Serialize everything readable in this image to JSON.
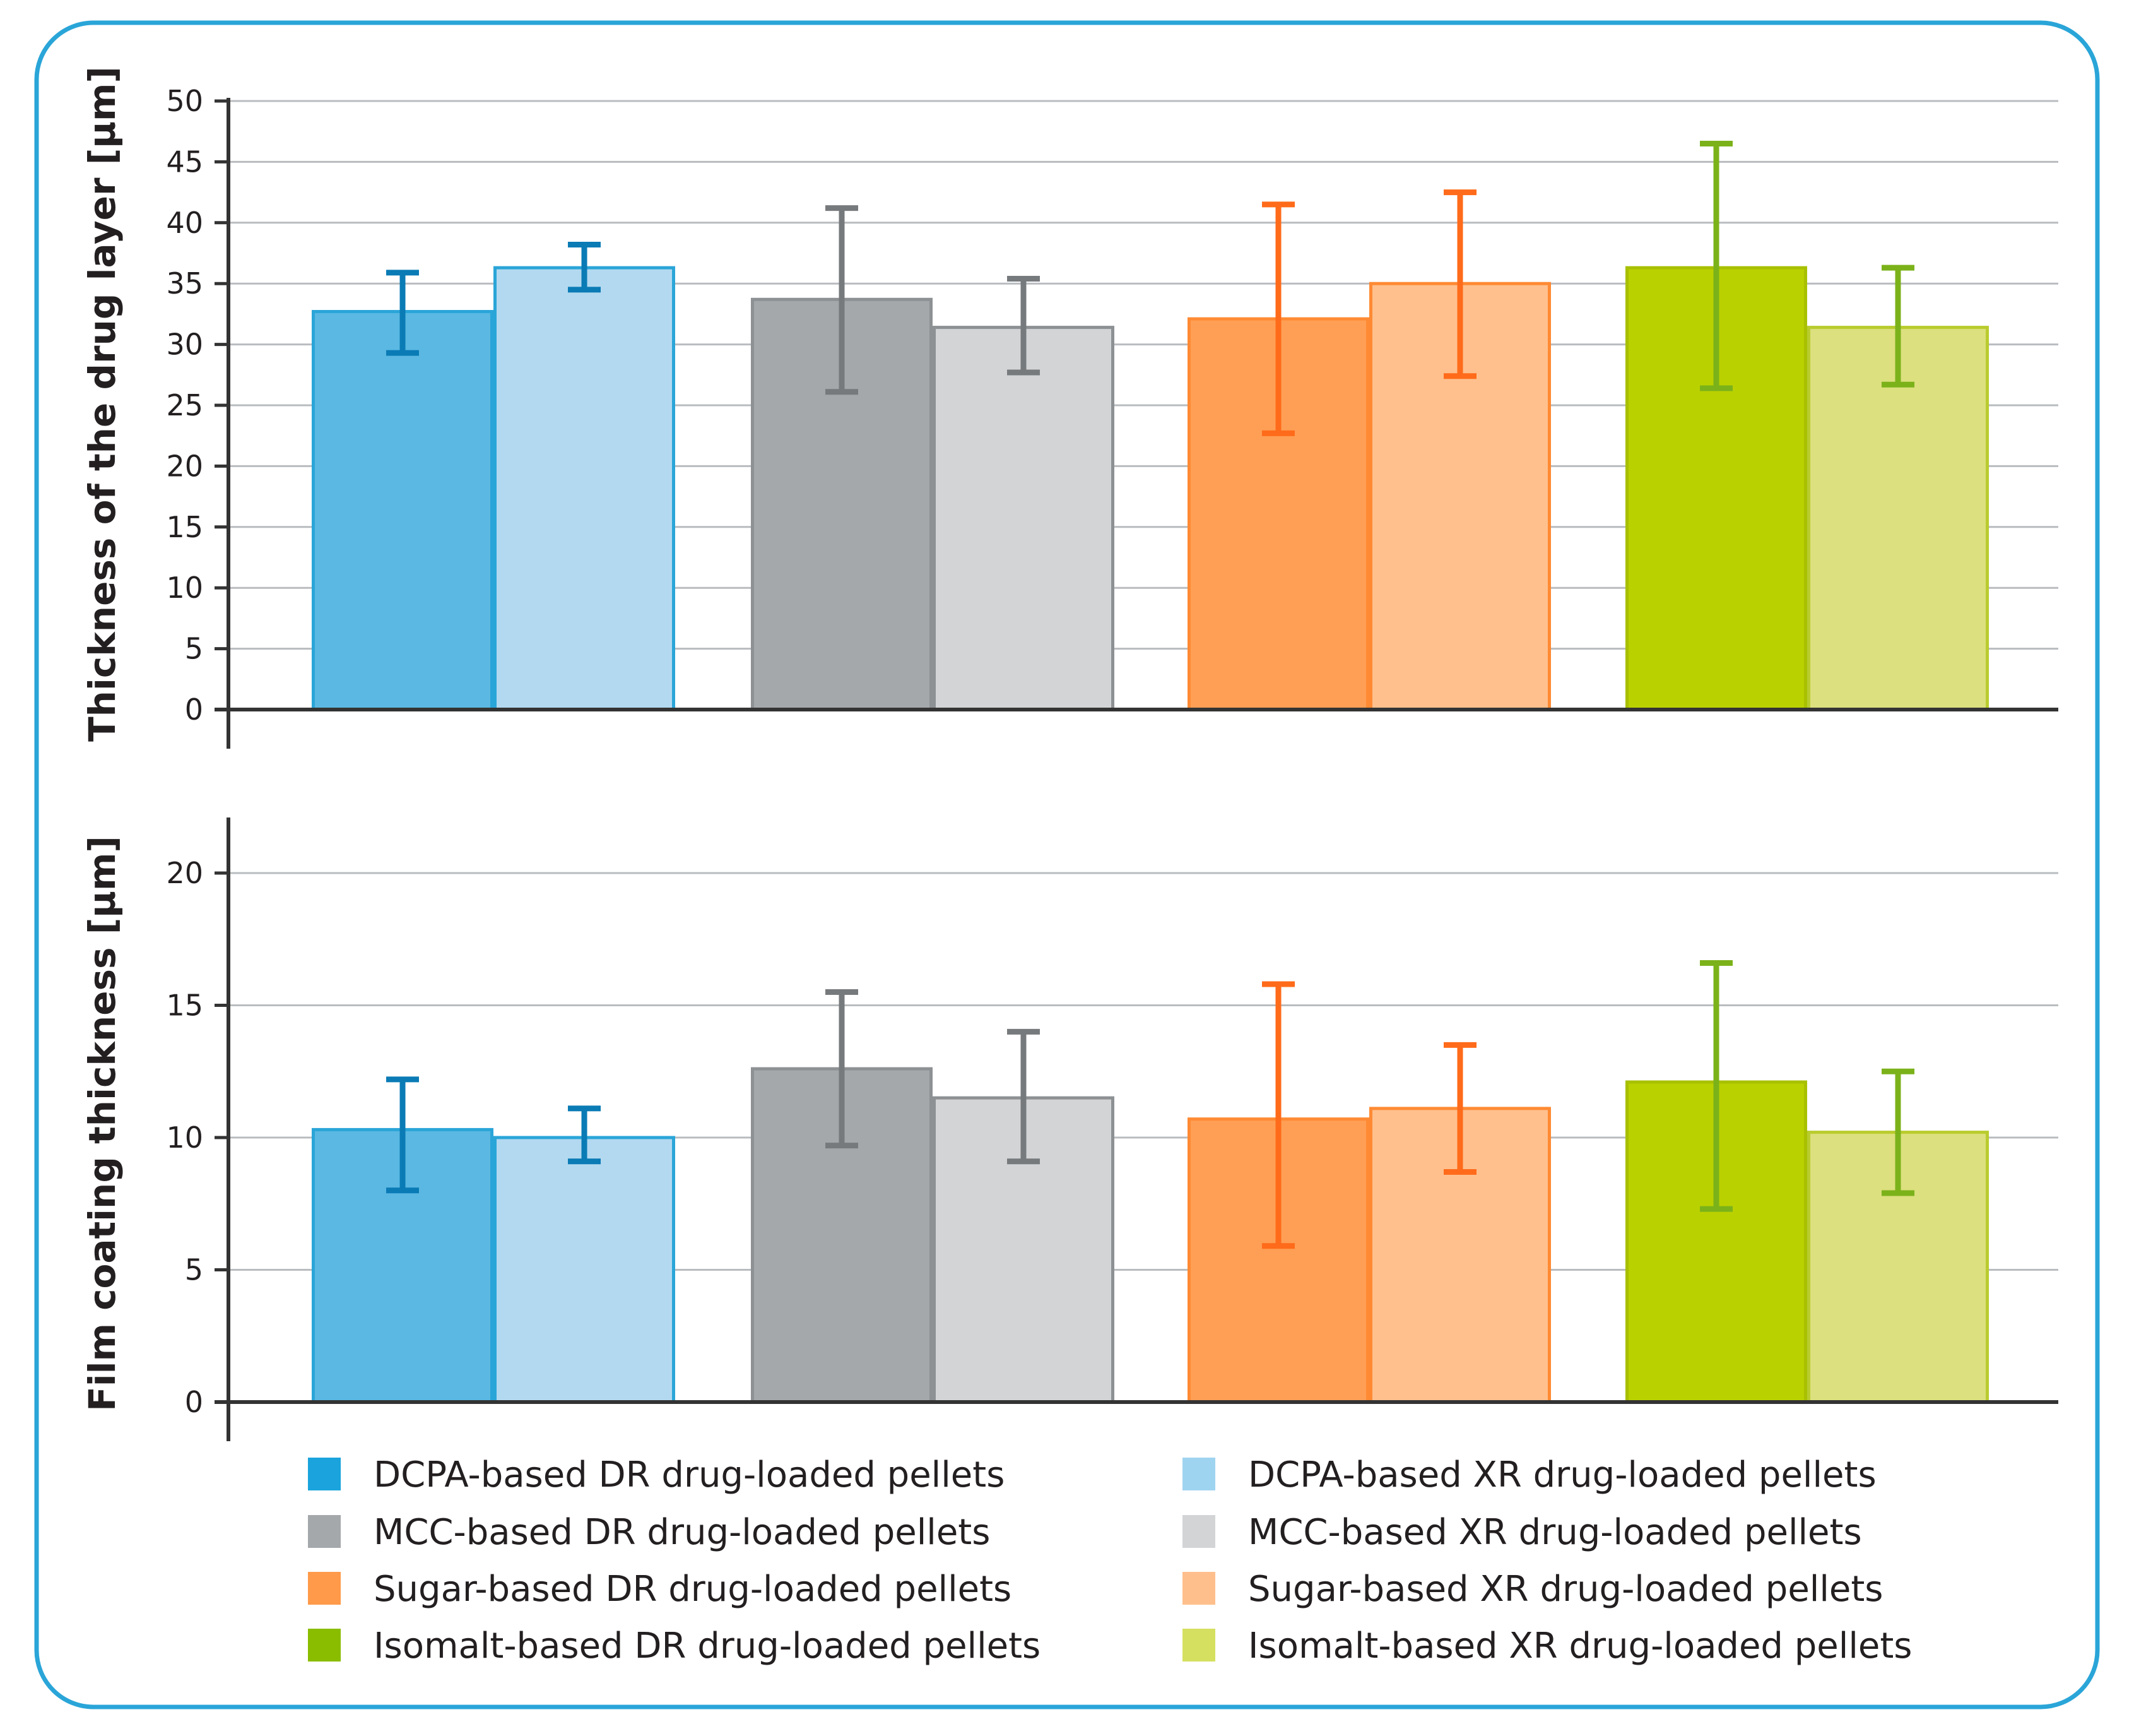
{
  "chart_data": [
    {
      "type": "bar",
      "title": "",
      "xlabel": "",
      "ylabel": "Thickness of the drug layer [µm]",
      "ylim": [
        0,
        50
      ],
      "yticks": [
        0,
        5,
        10,
        15,
        20,
        25,
        30,
        35,
        40,
        45,
        50
      ],
      "grid": true,
      "categories": [
        "DCPA-based",
        "MCC-based",
        "Sugar-based",
        "Isomalt-based"
      ],
      "series": [
        {
          "name": "DR drug-loaded pellets",
          "values": [
            32.7,
            33.7,
            32.1,
            36.3
          ],
          "error_low": [
            29.3,
            26.1,
            22.7,
            26.4
          ],
          "error_high": [
            35.9,
            41.2,
            41.5,
            46.5
          ]
        },
        {
          "name": "XR drug-loaded pellets",
          "values": [
            36.3,
            31.4,
            35.0,
            31.4
          ],
          "error_low": [
            34.5,
            27.7,
            27.4,
            26.7
          ],
          "error_high": [
            38.2,
            35.4,
            42.5,
            36.3
          ]
        }
      ]
    },
    {
      "type": "bar",
      "title": "",
      "xlabel": "",
      "ylabel": "Film coating thickness [µm]",
      "ylim": [
        0,
        22
      ],
      "yticks": [
        0,
        5,
        10,
        15,
        20
      ],
      "grid": true,
      "categories": [
        "DCPA-based",
        "MCC-based",
        "Sugar-based",
        "Isomalt-based"
      ],
      "series": [
        {
          "name": "DR drug-loaded pellets",
          "values": [
            10.3,
            12.6,
            10.7,
            12.1
          ],
          "error_low": [
            8.0,
            9.7,
            5.9,
            7.3
          ],
          "error_high": [
            12.2,
            15.5,
            15.8,
            16.6
          ]
        },
        {
          "name": "XR drug-loaded pellets",
          "values": [
            10.0,
            11.5,
            11.1,
            10.2
          ],
          "error_low": [
            9.1,
            9.1,
            8.7,
            7.9
          ],
          "error_high": [
            11.1,
            14.0,
            13.5,
            12.5
          ]
        }
      ]
    }
  ],
  "legend": [
    {
      "label": "DCPA-based DR drug-loaded pellets",
      "color": "#1aa3dc"
    },
    {
      "label": "DCPA-based XR drug-loaded pellets",
      "color": "#9fd4f0"
    },
    {
      "label": "MCC-based DR drug-loaded pellets",
      "color": "#a5a8aa"
    },
    {
      "label": "MCC-based XR drug-loaded pellets",
      "color": "#d2d4d6"
    },
    {
      "label": "Sugar-based DR drug-loaded pellets",
      "color": "#ff9a4a"
    },
    {
      "label": "Sugar-based XR drug-loaded pellets",
      "color": "#ffbf8c"
    },
    {
      "label": "Isomalt-based DR drug-loaded pellets",
      "color": "#8abd00"
    },
    {
      "label": "Isomalt-based XR drug-loaded pellets",
      "color": "#d6e060"
    }
  ],
  "colors": {
    "frame": "#2aa5d8",
    "grid": "#b9bcbf",
    "axis": "#333333",
    "text": "#231f20",
    "groups": [
      {
        "dr_fill": "#5bb8e2",
        "dr_edge": "#2aa5d8",
        "xr_fill": "#b3d9f0",
        "xr_edge": "#2aa5d8",
        "err": "#0a7bb5"
      },
      {
        "dr_fill": "#a5a8aa",
        "dr_edge": "#8e9193",
        "xr_fill": "#d2d4d6",
        "xr_edge": "#8e9193",
        "err": "#777a7c"
      },
      {
        "dr_fill": "#ff9f55",
        "dr_edge": "#ff8a33",
        "xr_fill": "#ffc08e",
        "xr_edge": "#ff8a33",
        "err": "#ff6b1a"
      },
      {
        "dr_fill": "#bad100",
        "dr_edge": "#a8c000",
        "xr_fill": "#dce07e",
        "xr_edge": "#b9cc2e",
        "err": "#7bb21a"
      }
    ]
  }
}
